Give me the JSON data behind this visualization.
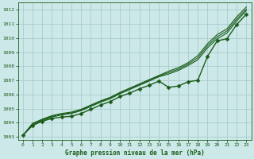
{
  "title": "Graphe pression niveau de la mer (hPa)",
  "background_color": "#cce8e8",
  "grid_color": "#aacccc",
  "line_color": "#1a5c1a",
  "xlim": [
    -0.5,
    23.5
  ],
  "ylim": [
    1002.8,
    1012.5
  ],
  "yticks": [
    1003,
    1004,
    1005,
    1006,
    1007,
    1008,
    1009,
    1010,
    1011,
    1012
  ],
  "xticks": [
    0,
    1,
    2,
    3,
    4,
    5,
    6,
    7,
    8,
    9,
    10,
    11,
    12,
    13,
    14,
    15,
    16,
    17,
    18,
    19,
    20,
    21,
    22,
    23
  ],
  "series": [
    {
      "x": [
        0,
        1,
        2,
        3,
        4,
        5,
        6,
        7,
        8,
        9,
        10,
        11,
        12,
        13,
        14,
        15,
        16,
        17,
        18,
        19,
        20,
        21,
        22,
        23
      ],
      "y": [
        1003.1,
        1003.8,
        1004.1,
        1004.3,
        1004.4,
        1004.45,
        1004.65,
        1004.95,
        1005.25,
        1005.5,
        1005.85,
        1006.1,
        1006.4,
        1006.65,
        1006.95,
        1006.5,
        1006.6,
        1006.9,
        1007.0,
        1008.7,
        1009.8,
        1009.95,
        1010.95,
        1011.7
      ],
      "marker": "D",
      "markersize": 2.5,
      "linewidth": 1.0,
      "zorder": 5
    },
    {
      "x": [
        0,
        1,
        2,
        3,
        4,
        5,
        6,
        7,
        8,
        9,
        10,
        11,
        12,
        13,
        14,
        15,
        16,
        17,
        18,
        19,
        20,
        21,
        22,
        23
      ],
      "y": [
        1003.1,
        1003.85,
        1004.15,
        1004.4,
        1004.55,
        1004.65,
        1004.85,
        1005.15,
        1005.45,
        1005.7,
        1006.05,
        1006.35,
        1006.65,
        1006.95,
        1007.25,
        1007.45,
        1007.7,
        1008.05,
        1008.45,
        1009.3,
        1009.95,
        1010.35,
        1011.2,
        1011.95
      ],
      "marker": null,
      "markersize": 0,
      "linewidth": 0.8,
      "zorder": 3
    },
    {
      "x": [
        0,
        1,
        2,
        3,
        4,
        5,
        6,
        7,
        8,
        9,
        10,
        11,
        12,
        13,
        14,
        15,
        16,
        17,
        18,
        19,
        20,
        21,
        22,
        23
      ],
      "y": [
        1003.1,
        1003.9,
        1004.2,
        1004.45,
        1004.6,
        1004.7,
        1004.9,
        1005.2,
        1005.5,
        1005.75,
        1006.1,
        1006.4,
        1006.7,
        1007.0,
        1007.3,
        1007.55,
        1007.8,
        1008.15,
        1008.6,
        1009.45,
        1010.1,
        1010.5,
        1011.35,
        1012.05
      ],
      "marker": null,
      "markersize": 0,
      "linewidth": 0.8,
      "zorder": 3
    },
    {
      "x": [
        0,
        1,
        2,
        3,
        4,
        5,
        6,
        7,
        8,
        9,
        10,
        11,
        12,
        13,
        14,
        15,
        16,
        17,
        18,
        19,
        20,
        21,
        22,
        23
      ],
      "y": [
        1003.1,
        1003.95,
        1004.25,
        1004.5,
        1004.65,
        1004.75,
        1004.95,
        1005.25,
        1005.55,
        1005.8,
        1006.15,
        1006.45,
        1006.75,
        1007.05,
        1007.35,
        1007.65,
        1007.9,
        1008.25,
        1008.75,
        1009.6,
        1010.25,
        1010.65,
        1011.5,
        1012.2
      ],
      "marker": null,
      "markersize": 0,
      "linewidth": 0.8,
      "zorder": 3
    }
  ]
}
